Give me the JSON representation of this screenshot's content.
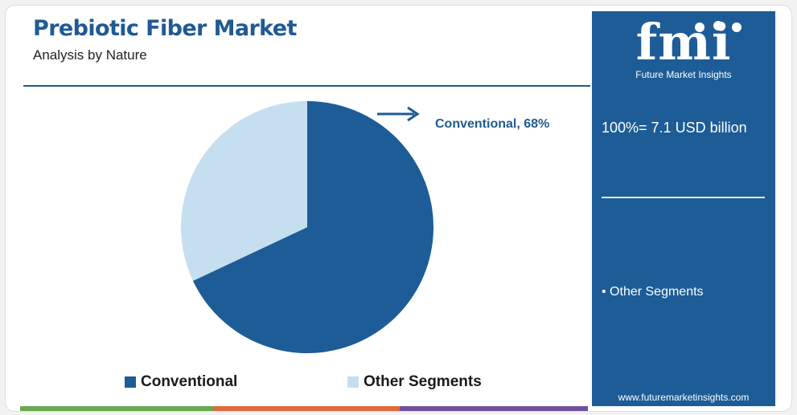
{
  "header": {
    "title": "Prebiotic Fiber Market",
    "subtitle": "Analysis by Nature"
  },
  "chart_data": {
    "type": "pie",
    "title": "Prebiotic Fiber Market",
    "subtitle": "Analysis by Nature",
    "slices": [
      {
        "label": "Conventional",
        "value": 68,
        "color": "#1d5c97"
      },
      {
        "label": "Other Segments",
        "value": 32,
        "color": "#c5dff1"
      }
    ],
    "legend_position": "bottom",
    "callout": "Conventional, 68%"
  },
  "panel": {
    "brand_mark": "fmi",
    "brand_name": "Future Market Insights",
    "total_label": "100%= 7.1 USD billion",
    "other_item": "• Other Segments",
    "url": "www.futuremarketinsights.com"
  },
  "colors": {
    "accent": "#1f5a94",
    "panel": "#1d5c97",
    "light_slice": "#c5dff1",
    "bar": [
      "#6aa84f",
      "#e06a3b",
      "#6f4fa0"
    ]
  }
}
